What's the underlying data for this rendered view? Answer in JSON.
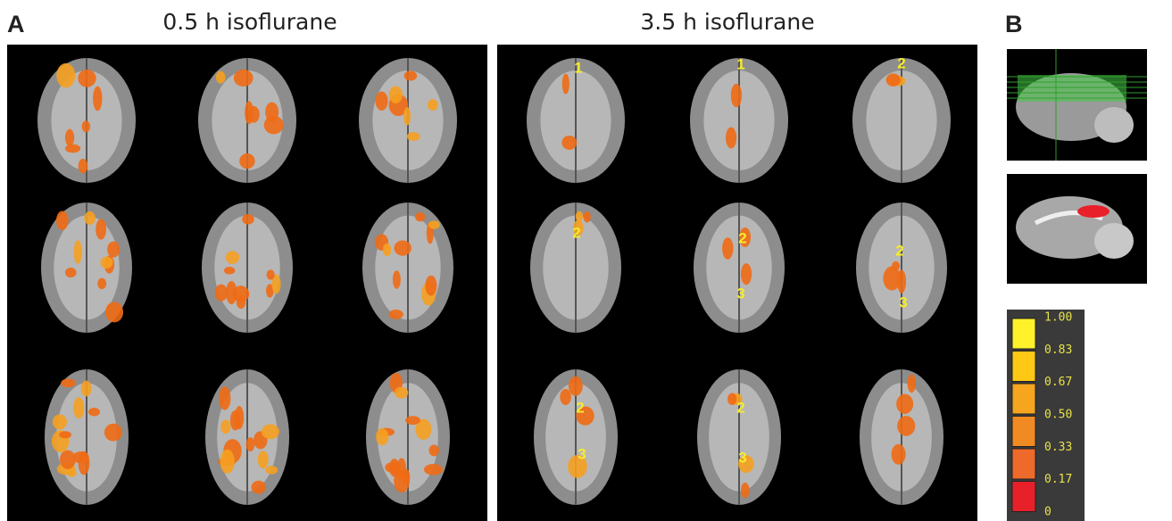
{
  "panel_a": {
    "label": "A",
    "groups": [
      {
        "title": "0.5 h isoflurane"
      },
      {
        "title": "3.5 h isoflurane",
        "region_labels": [
          "1",
          "1",
          "2",
          "2",
          "2",
          "2",
          "3",
          "3",
          "2",
          "3",
          "2",
          "3"
        ]
      }
    ]
  },
  "panel_b": {
    "label": "B",
    "colorbar": {
      "labels": [
        "1.00",
        "0.83",
        "0.67",
        "0.50",
        "0.33",
        "0.17",
        "0"
      ]
    }
  }
}
